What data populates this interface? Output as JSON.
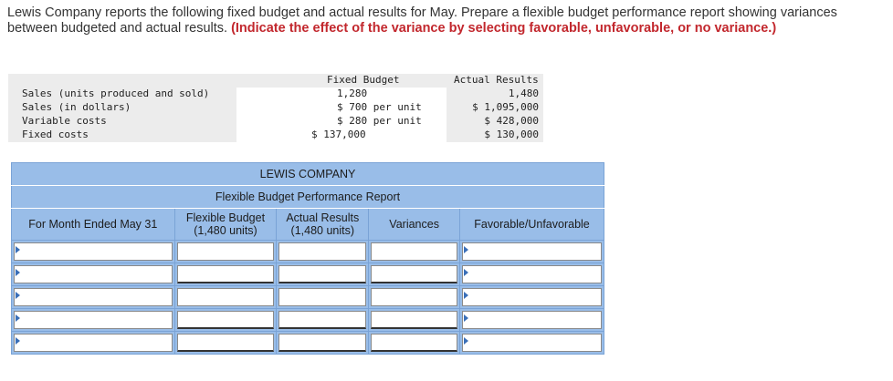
{
  "intro": {
    "text": "Lewis Company reports the following fixed budget and actual results for May. Prepare a flexible budget performance report showing variances between budgeted and actual results. ",
    "instruction": "(Indicate the effect of the variance by selecting favorable, unfavorable, or no variance.)"
  },
  "given": {
    "headers": {
      "fixed_budget": "Fixed Budget",
      "actual_results": "Actual Results"
    },
    "rows": [
      {
        "label": "Sales (units produced and sold)",
        "fixed_budget": "1,280",
        "actual_results": "1,480"
      },
      {
        "label": "Sales (in dollars)",
        "fixed_budget": "$ 700 per unit",
        "actual_results": "$ 1,095,000"
      },
      {
        "label": "Variable costs",
        "fixed_budget": "$ 280 per unit",
        "actual_results": "$ 428,000"
      },
      {
        "label": "Fixed costs",
        "fixed_budget": "$ 137,000",
        "actual_results": "$ 130,000"
      }
    ]
  },
  "report": {
    "company": "LEWIS COMPANY",
    "title": "Flexible Budget Performance Report",
    "headers": {
      "period": "For Month Ended May 31",
      "flexible_budget": "Flexible Budget",
      "flexible_units": "(1,480 units)",
      "actual_results": "Actual Results",
      "actual_units": "(1,480 units)",
      "variances": "Variances",
      "fav_unfav": "Favorable/Unfavorable"
    },
    "rows": [
      {
        "label": "",
        "flexible": "",
        "actual": "",
        "variance": "",
        "effect": ""
      },
      {
        "label": "",
        "flexible": "",
        "actual": "",
        "variance": "",
        "effect": ""
      },
      {
        "label": "",
        "flexible": "",
        "actual": "",
        "variance": "",
        "effect": ""
      },
      {
        "label": "",
        "flexible": "",
        "actual": "",
        "variance": "",
        "effect": ""
      },
      {
        "label": "",
        "flexible": "",
        "actual": "",
        "variance": "",
        "effect": ""
      }
    ]
  },
  "colors": {
    "accent_red": "#c2272d",
    "table_blue": "#99bde8",
    "dropdown_arrow": "#3a6fb8"
  }
}
